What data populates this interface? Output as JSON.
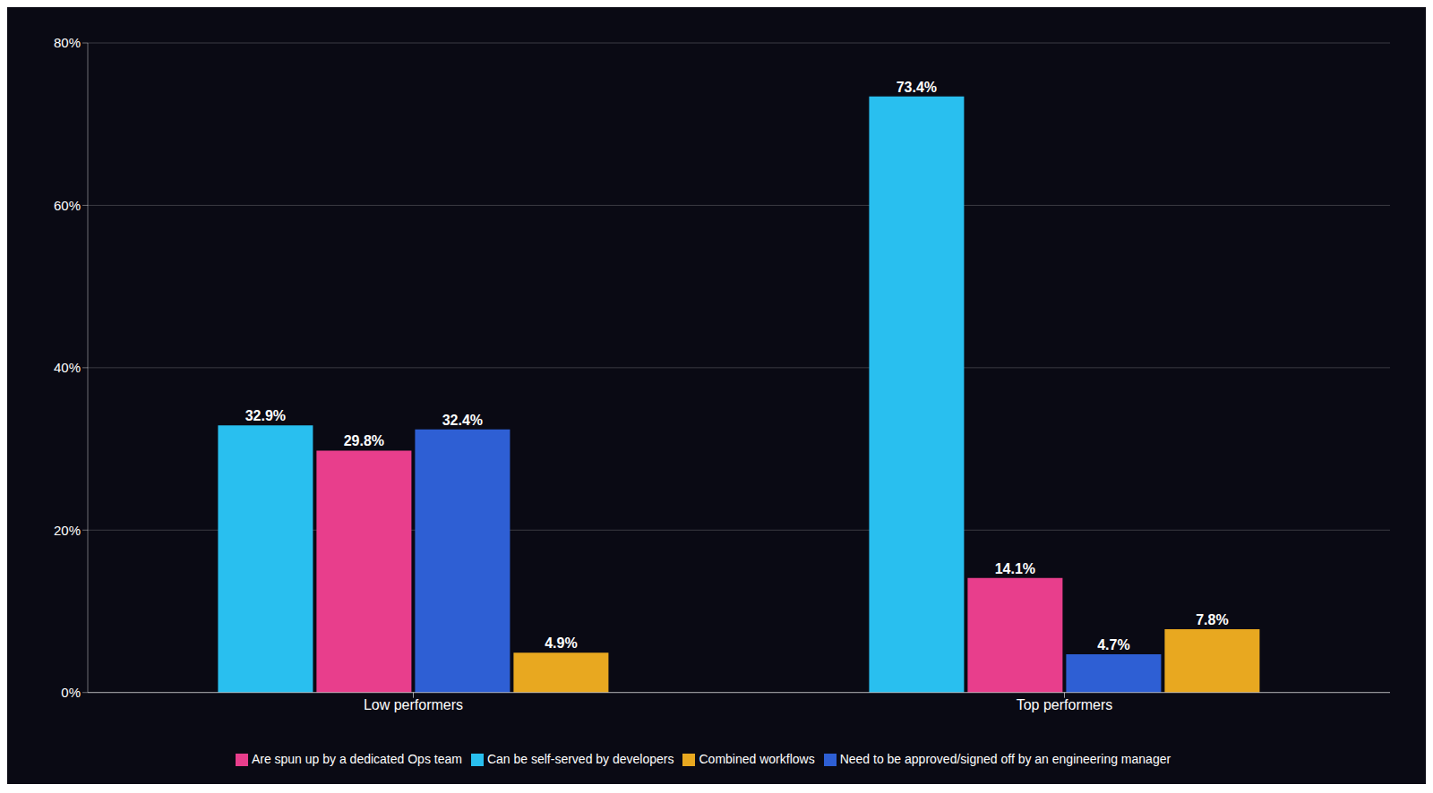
{
  "chart_data": {
    "type": "bar",
    "categories": [
      "Low performers",
      "Top performers"
    ],
    "series": [
      {
        "name": "Can be self-served by developers",
        "color": "#29BFEF",
        "values": [
          32.9,
          73.4
        ],
        "value_labels": [
          "32.9%",
          "73.4%"
        ]
      },
      {
        "name": "Are spun up by a dedicated Ops team",
        "color": "#E83E8C",
        "values": [
          29.8,
          14.1
        ],
        "value_labels": [
          "29.8%",
          "14.1%"
        ]
      },
      {
        "name": "Need to be approved/signed off by an engineering manager",
        "color": "#2E5FD4",
        "values": [
          32.4,
          4.7
        ],
        "value_labels": [
          "32.4%",
          "4.7%"
        ]
      },
      {
        "name": "Combined workflows",
        "color": "#E8A820",
        "values": [
          4.9,
          7.8
        ],
        "value_labels": [
          "4.9%",
          "7.8%"
        ]
      }
    ],
    "ylim": [
      0,
      80
    ],
    "yticks": [
      {
        "value": 0,
        "label": "0%"
      },
      {
        "value": 20,
        "label": "20%"
      },
      {
        "value": 40,
        "label": "40%"
      },
      {
        "value": 60,
        "label": "60%"
      },
      {
        "value": 80,
        "label": "80%"
      }
    ],
    "grid": true,
    "legend": "bottom",
    "data_labels": true
  }
}
